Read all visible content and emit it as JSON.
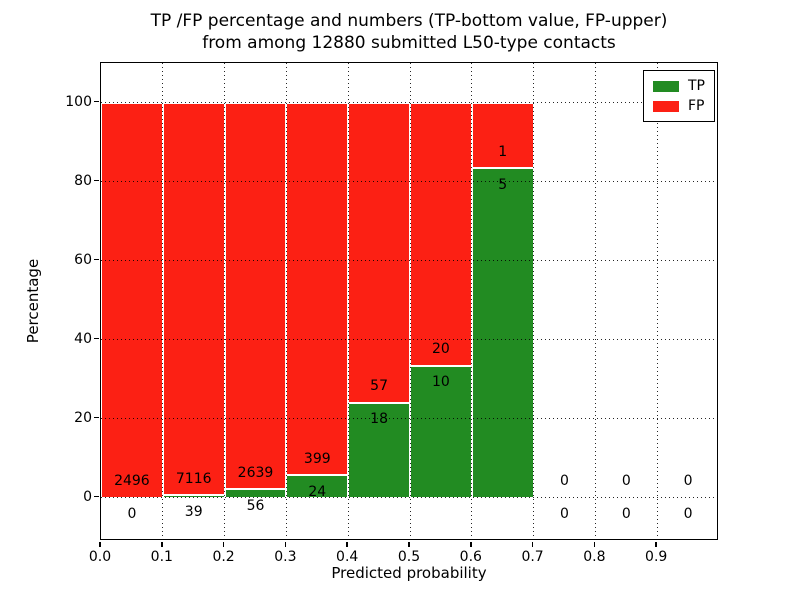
{
  "title": {
    "line1": "TP /FP percentage and numbers (TP-bottom value, FP-upper)",
    "line2": "from among 12880 submitted L50-type contacts"
  },
  "axes": {
    "xlabel": "Predicted probability",
    "ylabel": "Percentage"
  },
  "legend": {
    "items": [
      {
        "label": "TP",
        "color": "#228b22"
      },
      {
        "label": "FP",
        "color": "#fc2014"
      }
    ]
  },
  "chart_data": {
    "type": "bar",
    "stacked": true,
    "title": "TP /FP percentage and numbers (TP-bottom value, FP-upper) from among 12880 submitted L50-type contacts",
    "xlabel": "Predicted probability",
    "ylabel": "Percentage",
    "xlim": [
      0.0,
      1.0
    ],
    "ylim": [
      -11,
      110
    ],
    "x_tick_values": [
      0.0,
      0.1,
      0.2,
      0.3,
      0.4,
      0.5,
      0.6,
      0.7,
      0.8,
      0.9
    ],
    "x_tick_labels": [
      "0.0",
      "0.1",
      "0.2",
      "0.3",
      "0.4",
      "0.5",
      "0.6",
      "0.7",
      "0.8",
      "0.9"
    ],
    "y_tick_values": [
      0,
      20,
      40,
      60,
      80,
      100
    ],
    "y_tick_labels": [
      "0",
      "20",
      "40",
      "60",
      "80",
      "100"
    ],
    "grid": "dotted-black-above-bars",
    "legend_position": "upper right",
    "bin_width": 0.1,
    "bin_starts": [
      0.0,
      0.1,
      0.2,
      0.3,
      0.4,
      0.5,
      0.6,
      0.7,
      0.8,
      0.9
    ],
    "series": [
      {
        "name": "TP",
        "color": "#228b22",
        "counts": [
          0,
          39,
          56,
          24,
          18,
          10,
          5,
          0,
          0,
          0
        ]
      },
      {
        "name": "FP",
        "color": "#fc2014",
        "counts": [
          2496,
          7116,
          2639,
          399,
          57,
          20,
          1,
          0,
          0,
          0
        ]
      }
    ],
    "tp_percent_of_bin": [
      0,
      0.5,
      2.1,
      5.7,
      24.0,
      33.3,
      83.3,
      0,
      0,
      0
    ],
    "fp_percent_of_bin": [
      100,
      99.5,
      97.9,
      94.3,
      76.0,
      66.7,
      16.7,
      0,
      0,
      0
    ],
    "bar_edge_color": "#ffffff",
    "annotation_offset_units": 4.2
  }
}
